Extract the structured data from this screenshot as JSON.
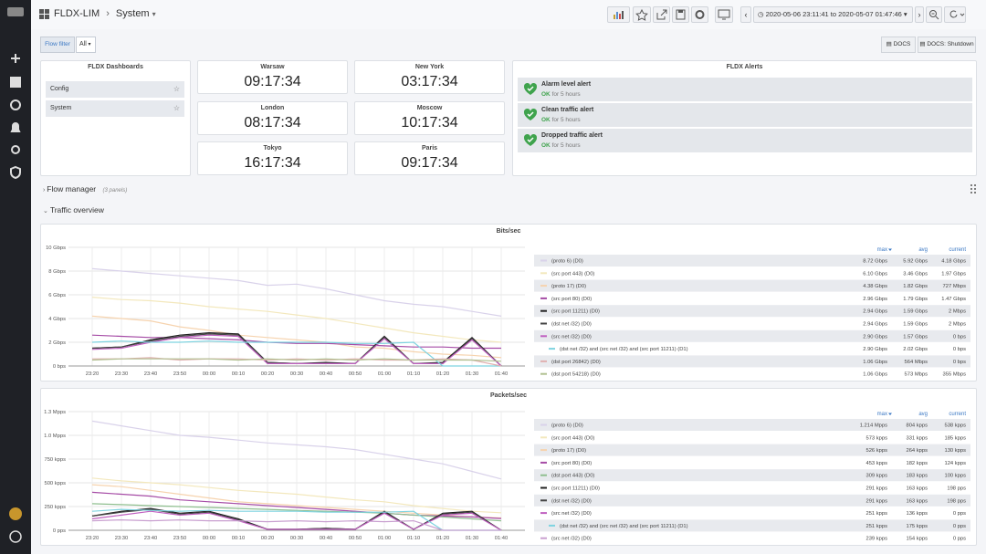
{
  "header": {
    "title": "FLDX-LIM",
    "subtitle": "System",
    "time_range": "2020-05-06 23:11:41 to 2020-05-07 01:47:46"
  },
  "filter": {
    "label": "Flow filter",
    "value": "All"
  },
  "links": [
    "DOCS",
    "DOCS: Shutdown"
  ],
  "dashboards": {
    "title": "FLDX Dashboards",
    "items": [
      "Config",
      "System"
    ]
  },
  "clocks": [
    {
      "city": "Warsaw",
      "time": "09:17:34"
    },
    {
      "city": "New York",
      "time": "03:17:34"
    },
    {
      "city": "London",
      "time": "08:17:34"
    },
    {
      "city": "Moscow",
      "time": "10:17:34"
    },
    {
      "city": "Tokyo",
      "time": "16:17:34"
    },
    {
      "city": "Paris",
      "time": "09:17:34"
    }
  ],
  "alerts": {
    "title": "FLDX Alerts",
    "items": [
      {
        "name": "Alarm level alert",
        "state": "OK",
        "since": "for 5 hours"
      },
      {
        "name": "Clean traffic alert",
        "state": "OK",
        "since": "for 5 hours"
      },
      {
        "name": "Dropped traffic alert",
        "state": "OK",
        "since": "for 5 hours"
      }
    ]
  },
  "rows": [
    {
      "title": "Flow manager",
      "note": "(3 panels)"
    },
    {
      "title": "Traffic overview"
    }
  ],
  "panels": [
    {
      "type": "line",
      "title": "Bits/sec",
      "x": [
        "23:20",
        "23:30",
        "23:40",
        "23:50",
        "00:00",
        "00:10",
        "00:20",
        "00:30",
        "00:40",
        "00:50",
        "01:00",
        "01:10",
        "01:20",
        "01:30",
        "01:40"
      ],
      "ylim": [
        0,
        10
      ],
      "yticks": [
        {
          "value": 0,
          "label": "0 bps"
        },
        {
          "value": 2,
          "label": "2 Gbps"
        },
        {
          "value": 4,
          "label": "4 Gbps"
        },
        {
          "value": 6,
          "label": "6 Gbps"
        },
        {
          "value": 8,
          "label": "8 Gbps"
        },
        {
          "value": 10,
          "label": "10 Gbps"
        }
      ],
      "columns": [
        "max",
        "avg",
        "current"
      ],
      "series": [
        {
          "name": "(proto 6) (D0)",
          "color": "#d9d2ea",
          "max": "8.72 Gbps",
          "avg": "5.92 Gbps",
          "current": "4.18 Gbps",
          "values": [
            8.2,
            8.0,
            7.8,
            7.6,
            7.4,
            7.2,
            6.8,
            6.9,
            6.5,
            6.0,
            5.5,
            5.2,
            5.0,
            4.6,
            4.2
          ]
        },
        {
          "name": "(src port 443) (D0)",
          "color": "#f3e8bd",
          "max": "6.10 Gbps",
          "avg": "3.46 Gbps",
          "current": "1.97 Gbps",
          "values": [
            5.8,
            5.6,
            5.5,
            5.3,
            5.0,
            4.8,
            4.6,
            4.3,
            4.0,
            3.6,
            3.2,
            2.8,
            2.5,
            2.2,
            2.0
          ]
        },
        {
          "name": "(proto 17) (D0)",
          "color": "#f6d3ae",
          "max": "4.38 Gbps",
          "avg": "1.82 Gbps",
          "current": "727 Mbps",
          "values": [
            4.2,
            4.0,
            3.8,
            3.3,
            3.0,
            2.6,
            2.4,
            2.2,
            2.0,
            1.6,
            1.5,
            1.2,
            1.0,
            0.9,
            0.7
          ]
        },
        {
          "name": "(src port 80) (D0)",
          "color": "#a64ca6",
          "max": "2.96 Gbps",
          "avg": "1.79 Gbps",
          "current": "1.47 Gbps",
          "values": [
            2.6,
            2.5,
            2.4,
            2.4,
            2.3,
            2.2,
            2.0,
            1.9,
            1.9,
            1.8,
            1.7,
            1.6,
            1.6,
            1.5,
            1.5
          ]
        },
        {
          "name": "(src port 11211) (D0)",
          "color": "#222222",
          "max": "2.94 Gbps",
          "avg": "1.59 Gbps",
          "current": "2 Mbps",
          "values": [
            1.5,
            1.6,
            2.2,
            2.6,
            2.8,
            2.7,
            0.3,
            0.2,
            0.3,
            0.2,
            2.5,
            0.2,
            0.3,
            2.4,
            0.0
          ]
        },
        {
          "name": "(dst net /32) (D0)",
          "color": "#444444",
          "max": "2.94 Gbps",
          "avg": "1.59 Gbps",
          "current": "2 Mbps",
          "values": [
            1.5,
            1.6,
            2.1,
            2.5,
            2.7,
            2.6,
            0.3,
            0.2,
            0.2,
            0.2,
            2.4,
            0.2,
            0.2,
            2.3,
            0.0
          ]
        },
        {
          "name": "(src net /32) (D0)",
          "color": "#c060c0",
          "max": "2.90 Gbps",
          "avg": "1.57 Gbps",
          "current": "0 bps",
          "values": [
            1.4,
            1.5,
            2.0,
            2.4,
            2.6,
            2.5,
            0.2,
            0.2,
            0.2,
            0.2,
            2.3,
            0.2,
            0.2,
            2.2,
            0.0
          ]
        },
        {
          "name": "(dst net /32) and (src net /32) and (src port 11211) (D1)",
          "color": "#7ed3e0",
          "max": "2.90 Gbps",
          "avg": "2.02 Gbps",
          "current": "0 bps",
          "values": [
            2.0,
            2.1,
            2.0,
            2.0,
            2.1,
            2.0,
            2.0,
            2.0,
            2.0,
            1.9,
            1.9,
            2.0,
            0.0,
            0.0,
            0.0
          ]
        },
        {
          "name": "(dst port 26842) (D0)",
          "color": "#e0b0b0",
          "max": "1.06 Gbps",
          "avg": "564 Mbps",
          "current": "0 bps",
          "values": [
            0.6,
            0.6,
            0.7,
            0.5,
            0.6,
            0.6,
            0.5,
            0.6,
            0.5,
            0.6,
            0.5,
            0.5,
            0.6,
            0.5,
            0.0
          ]
        },
        {
          "name": "(dst port 54218) (D0)",
          "color": "#b0c090",
          "max": "1.06 Gbps",
          "avg": "573 Mbps",
          "current": "355 Mbps",
          "values": [
            0.5,
            0.6,
            0.6,
            0.6,
            0.6,
            0.5,
            0.6,
            0.5,
            0.6,
            0.5,
            0.6,
            0.5,
            0.5,
            0.5,
            0.4
          ]
        }
      ]
    },
    {
      "type": "line",
      "title": "Packets/sec",
      "x": [
        "23:20",
        "23:30",
        "23:40",
        "23:50",
        "00:00",
        "00:10",
        "00:20",
        "00:30",
        "00:40",
        "00:50",
        "01:00",
        "01:10",
        "01:20",
        "01:30",
        "01:40"
      ],
      "ylim": [
        0,
        1250
      ],
      "yticks": [
        {
          "value": 0,
          "label": "0 pps"
        },
        {
          "value": 250,
          "label": "250 kpps"
        },
        {
          "value": 500,
          "label": "500 kpps"
        },
        {
          "value": 750,
          "label": "750 kpps"
        },
        {
          "value": 1000,
          "label": "1.0 Mpps"
        },
        {
          "value": 1250,
          "label": "1.3 Mpps"
        }
      ],
      "columns": [
        "max",
        "avg",
        "current"
      ],
      "series": [
        {
          "name": "(proto 6) (D0)",
          "color": "#d9d2ea",
          "max": "1.214 Mpps",
          "avg": "804 kpps",
          "current": "538 kpps",
          "values": [
            1150,
            1100,
            1050,
            1000,
            980,
            950,
            920,
            900,
            880,
            850,
            800,
            750,
            700,
            620,
            540
          ]
        },
        {
          "name": "(src port 443) (D0)",
          "color": "#f3e8bd",
          "max": "573 kpps",
          "avg": "331 kpps",
          "current": "185 kpps",
          "values": [
            550,
            520,
            500,
            480,
            450,
            420,
            400,
            380,
            350,
            320,
            300,
            260,
            230,
            200,
            185
          ]
        },
        {
          "name": "(proto 17) (D0)",
          "color": "#f6d3ae",
          "max": "526 kpps",
          "avg": "264 kpps",
          "current": "130 kpps",
          "values": [
            480,
            460,
            420,
            380,
            340,
            300,
            280,
            260,
            240,
            220,
            200,
            180,
            160,
            140,
            130
          ]
        },
        {
          "name": "(src port 80) (D0)",
          "color": "#a64ca6",
          "max": "453 kpps",
          "avg": "182 kpps",
          "current": "124 kpps",
          "values": [
            400,
            380,
            360,
            320,
            300,
            280,
            260,
            240,
            220,
            200,
            180,
            160,
            150,
            140,
            124
          ]
        },
        {
          "name": "(dst port 443) (D0)",
          "color": "#8fbf8f",
          "max": "309 kpps",
          "avg": "183 kpps",
          "current": "100 kpps",
          "values": [
            280,
            270,
            260,
            250,
            240,
            230,
            220,
            210,
            200,
            190,
            180,
            160,
            140,
            120,
            100
          ]
        },
        {
          "name": "(src port 11211) (D0)",
          "color": "#222222",
          "max": "291 kpps",
          "avg": "163 kpps",
          "current": "198 pps",
          "values": [
            150,
            200,
            230,
            180,
            200,
            120,
            10,
            10,
            20,
            10,
            200,
            10,
            180,
            200,
            0
          ]
        },
        {
          "name": "(dst net /32) (D0)",
          "color": "#444444",
          "max": "291 kpps",
          "avg": "163 kpps",
          "current": "198 pps",
          "values": [
            150,
            190,
            220,
            170,
            190,
            110,
            10,
            10,
            20,
            10,
            190,
            10,
            170,
            190,
            0
          ]
        },
        {
          "name": "(src net /32) (D0)",
          "color": "#c060c0",
          "max": "251 kpps",
          "avg": "136 kpps",
          "current": "0 pps",
          "values": [
            120,
            160,
            200,
            160,
            180,
            100,
            10,
            10,
            10,
            10,
            180,
            10,
            160,
            180,
            0
          ]
        },
        {
          "name": "(dst net /32) and (src net /32) and (src port 11211) (D1)",
          "color": "#7ed3e0",
          "max": "251 kpps",
          "avg": "175 kpps",
          "current": "0 pps",
          "values": [
            200,
            220,
            210,
            200,
            210,
            200,
            200,
            200,
            190,
            190,
            190,
            200,
            0,
            0,
            0
          ]
        },
        {
          "name": "(src net /32) (D0)",
          "color": "#c9a0d0",
          "max": "239 kpps",
          "avg": "154 kpps",
          "current": "0 pps",
          "values": [
            100,
            110,
            100,
            110,
            100,
            100,
            90,
            100,
            90,
            100,
            90,
            100,
            0,
            0,
            0
          ]
        }
      ]
    }
  ]
}
